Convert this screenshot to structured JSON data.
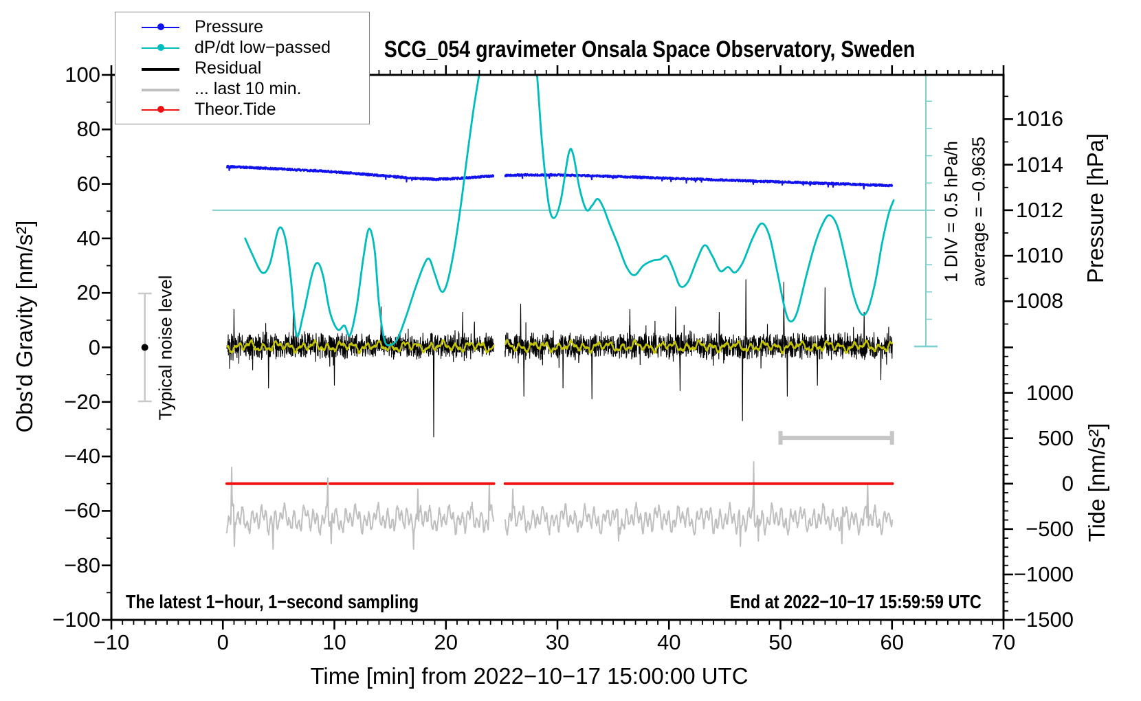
{
  "title": "SCG_054 gravimeter Onsala Space Observatory, Sweden",
  "annotations": {
    "bottom_left": "The latest 1−hour, 1−second sampling",
    "bottom_right": "End at 2022−10−17 15:59:59 UTC",
    "noise_label": "Typical noise level",
    "div_scale": "1 DIV = 0.5 hPa/h",
    "average": "average = −0.9635"
  },
  "legend": {
    "items": [
      {
        "label": "Pressure",
        "color": "#1212ee",
        "dot": true,
        "thick": 2
      },
      {
        "label": "dP/dt low−passed",
        "color": "#00bdbd",
        "dot": true,
        "thick": 2
      },
      {
        "label": "Residual",
        "color": "#000000",
        "dot": false,
        "thick": 4
      },
      {
        "label": "... last 10 min.",
        "color": "#bfbfbf",
        "dot": false,
        "thick": 4
      },
      {
        "label": "Theor.Tide",
        "color": "#ee1111",
        "dot": true,
        "thick": 2
      }
    ]
  },
  "colors": {
    "frame": "#000000",
    "pressure": "#1212ee",
    "dpdt": "#00bdbd",
    "residual": "#000000",
    "residual_smooth": "#c3c300",
    "tide": "#ee1111",
    "last10": "#bfbfbf",
    "guide_cyan": "#7ed0d0",
    "noise_bar": "#c9c9c9",
    "last10_bar": "#c6c6c6"
  },
  "axes": {
    "x_axis": {
      "title": "Time [min] from 2022−10−17 15:00:00 UTC",
      "range": [
        -10,
        70
      ],
      "minor_step": 1,
      "major_step": 10,
      "ticks": [
        {
          "v": -10,
          "label": "−10"
        },
        {
          "v": 0,
          "label": "0"
        },
        {
          "v": 10,
          "label": "10"
        },
        {
          "v": 20,
          "label": "20"
        },
        {
          "v": 30,
          "label": "30"
        },
        {
          "v": 40,
          "label": "40"
        },
        {
          "v": 50,
          "label": "50"
        },
        {
          "v": 60,
          "label": "60"
        },
        {
          "v": 70,
          "label": "70"
        }
      ]
    },
    "y_left": {
      "title": "Obs'd Gravity [nm/s²]",
      "range": [
        -100,
        100
      ],
      "minor_step": 10,
      "major_step": 20,
      "ticks": [
        {
          "v": 100,
          "label": "100"
        },
        {
          "v": 80,
          "label": "80"
        },
        {
          "v": 60,
          "label": "60"
        },
        {
          "v": 40,
          "label": "40"
        },
        {
          "v": 20,
          "label": "20"
        },
        {
          "v": 0,
          "label": "0"
        },
        {
          "v": -20,
          "label": "−20"
        },
        {
          "v": -40,
          "label": "−40"
        },
        {
          "v": -60,
          "label": "−60"
        },
        {
          "v": -80,
          "label": "−80"
        },
        {
          "v": -100,
          "label": "−100"
        }
      ]
    },
    "y_pressure": {
      "title": "Pressure [hPa]",
      "anchor_value": 1012,
      "anchor_g": 50.35,
      "g_per_hpa": 8.355,
      "minor_step": 1,
      "minor_range": [
        1007,
        1017
      ],
      "ticks": [
        {
          "v": 1016,
          "label": "1016"
        },
        {
          "v": 1014,
          "label": "1014"
        },
        {
          "v": 1012,
          "label": "1012"
        },
        {
          "v": 1010,
          "label": "1010"
        },
        {
          "v": 1008,
          "label": "1008"
        }
      ]
    },
    "y_tide": {
      "title": "Tide [nm/s²]",
      "anchor_g": -50,
      "units_per_g": 30.0,
      "minor_step": 100,
      "minor_range": [
        -1500,
        1500
      ],
      "ticks": [
        {
          "v": 1000,
          "label": "1000"
        },
        {
          "v": 500,
          "label": "500"
        },
        {
          "v": 0,
          "label": "0"
        },
        {
          "v": -500,
          "label": "−500"
        },
        {
          "v": -1000,
          "label": "−1000"
        },
        {
          "v": -1500,
          "label": "−1500"
        }
      ]
    }
  },
  "chart_data": {
    "type": "line",
    "title": "SCG_054 gravimeter Onsala Space Observatory, Sweden",
    "xlabel": "Time [min] from 2022−10−17 15:00:00 UTC",
    "ylabel_left": "Obs'd Gravity [nm/s²]",
    "xlim": [
      -10,
      70
    ],
    "ylim_left": [
      -100,
      100
    ],
    "data_gap_minutes": [
      24.3,
      25.3
    ],
    "guides": {
      "hline": {
        "g": 50.35,
        "t1": -0.95,
        "x2": 1360
      },
      "div_axis": {
        "x": 1347,
        "tick_step_g": 10.0,
        "cap_half": 17
      },
      "noise_bar": {
        "t": -7,
        "g_lo": -19.8,
        "g_hi": 19.8,
        "dot_g": 0
      },
      "last10_bar": {
        "t1": 50,
        "t2": 60,
        "g": -33.2
      }
    },
    "series": [
      {
        "name": "last-10-min-trace",
        "type": "waves",
        "color": "#bfbfbf",
        "width": 2,
        "base": -63,
        "seed": 3,
        "noise": 2.0,
        "waves": [
          [
            0.42,
            2.4,
            0.3
          ],
          [
            0.93,
            2.0,
            2.2
          ],
          [
            2.1,
            1.5,
            4.1
          ]
        ],
        "segments": [
          [
            0.3,
            24.3
          ],
          [
            25.3,
            60.05
          ]
        ],
        "spikes": [
          [
            0.8,
            -44
          ],
          [
            1.05,
            -73
          ],
          [
            4.5,
            -74
          ],
          [
            9.4,
            -48
          ],
          [
            9.7,
            -72
          ],
          [
            17.1,
            -74
          ],
          [
            17.5,
            -52
          ],
          [
            23.9,
            -50
          ],
          [
            26.0,
            -52
          ],
          [
            35.5,
            -71
          ],
          [
            46.4,
            -73
          ],
          [
            47.6,
            -42
          ],
          [
            48.0,
            -71
          ],
          [
            55.5,
            -72
          ],
          [
            57.8,
            -50
          ]
        ]
      },
      {
        "name": "theor-tide",
        "type": "flat",
        "color": "#ee1111",
        "width": 4,
        "value": -50,
        "segments": [
          [
            0.35,
            9.25
          ],
          [
            9.6,
            24.3
          ],
          [
            25.3,
            60.05
          ]
        ]
      },
      {
        "name": "residual",
        "type": "noise",
        "color": "#000000",
        "width": 1.1,
        "base": 0.5,
        "sigma": 5.5,
        "seed": 11,
        "segments": [
          [
            0.35,
            24.3
          ],
          [
            25.3,
            60.05
          ]
        ],
        "spikes": [
          [
            1.0,
            14
          ],
          [
            4.1,
            -15
          ],
          [
            6.3,
            13
          ],
          [
            10.0,
            -14
          ],
          [
            14.2,
            15
          ],
          [
            18.9,
            -33
          ],
          [
            21.5,
            13
          ],
          [
            26.7,
            16
          ],
          [
            27.0,
            -18
          ],
          [
            30.5,
            -15
          ],
          [
            33.1,
            -19
          ],
          [
            36.5,
            14
          ],
          [
            40.6,
            15
          ],
          [
            41.0,
            -16
          ],
          [
            44.5,
            13
          ],
          [
            46.6,
            -27
          ],
          [
            46.9,
            25
          ],
          [
            50.3,
            24
          ],
          [
            50.6,
            -18
          ],
          [
            53.3,
            -14
          ],
          [
            54.0,
            22
          ],
          [
            57.5,
            13
          ],
          [
            59.0,
            -12
          ]
        ]
      },
      {
        "name": "residual-low-passed",
        "type": "waves",
        "color": "#c3c300",
        "width": 2.4,
        "base": 0.3,
        "seed": 5,
        "noise": 0.8,
        "waves": [
          [
            1.15,
            1.0,
            0.5
          ],
          [
            0.52,
            0.6,
            1.7
          ],
          [
            2.9,
            0.7,
            3.0
          ]
        ],
        "segments": [
          [
            0.35,
            24.3
          ],
          [
            25.3,
            60.05
          ]
        ],
        "spikes": []
      },
      {
        "name": "pressure",
        "type": "noisy-line",
        "color": "#1212ee",
        "width": 2.2,
        "noise": 0.42,
        "seed": 7,
        "segments": [
          [
            0.35,
            24.3
          ],
          [
            25.3,
            60.05
          ]
        ],
        "points": [
          [
            0,
            66.4
          ],
          [
            3,
            65.9
          ],
          [
            6,
            65.3
          ],
          [
            9,
            64.7
          ],
          [
            12,
            63.8
          ],
          [
            15,
            62.8
          ],
          [
            17,
            62.1
          ],
          [
            19,
            61.7
          ],
          [
            21,
            62.0
          ],
          [
            23,
            62.6
          ],
          [
            24.3,
            62.9
          ],
          [
            25.3,
            63.1
          ],
          [
            27,
            63.3
          ],
          [
            30,
            63.3
          ],
          [
            33,
            63.0
          ],
          [
            36,
            62.6
          ],
          [
            39,
            62.2
          ],
          [
            42,
            61.8
          ],
          [
            45,
            61.4
          ],
          [
            48,
            61.0
          ],
          [
            51,
            60.6
          ],
          [
            54,
            60.2
          ],
          [
            57,
            59.8
          ],
          [
            60,
            59.4
          ]
        ]
      },
      {
        "name": "dpdt-low-passed",
        "type": "smooth",
        "color": "#00bdbd",
        "width": 2.8,
        "pieces": [
          [
            [
              2.0,
              40
            ],
            [
              2.6,
              34.5
            ],
            [
              3.5,
              27.5
            ],
            [
              4.2,
              30.5
            ],
            [
              5.0,
              43.5
            ],
            [
              5.6,
              40
            ],
            [
              6.1,
              25
            ],
            [
              6.6,
              4.5
            ],
            [
              7.2,
              12
            ],
            [
              8.0,
              27
            ],
            [
              8.5,
              31
            ],
            [
              9.0,
              26
            ],
            [
              9.6,
              13
            ],
            [
              10.3,
              6.5
            ],
            [
              10.9,
              8
            ],
            [
              11.4,
              4.5
            ],
            [
              12.0,
              15
            ],
            [
              12.6,
              33
            ],
            [
              13.1,
              43.5
            ],
            [
              13.6,
              36
            ],
            [
              14.0,
              16
            ],
            [
              14.5,
              2.5
            ],
            [
              15.1,
              1
            ],
            [
              15.7,
              3.5
            ],
            [
              16.4,
              11
            ],
            [
              17.2,
              21
            ],
            [
              18.0,
              30
            ],
            [
              18.5,
              32.5
            ],
            [
              19.0,
              27
            ],
            [
              19.6,
              20.5
            ],
            [
              20.1,
              23.5
            ],
            [
              20.7,
              35
            ],
            [
              21.3,
              51
            ],
            [
              21.9,
              70
            ],
            [
              22.5,
              88
            ],
            [
              23.1,
              103
            ],
            [
              23.6,
              115
            ]
          ],
          [
            [
              27.5,
              116
            ],
            [
              28.1,
              103
            ],
            [
              28.6,
              76
            ],
            [
              29.2,
              53
            ],
            [
              29.7,
              47.5
            ],
            [
              30.3,
              54
            ],
            [
              31.0,
              71
            ],
            [
              31.4,
              71
            ],
            [
              32.0,
              58
            ],
            [
              32.6,
              50.5
            ],
            [
              33.1,
              52
            ],
            [
              33.6,
              54.5
            ],
            [
              34.1,
              51.5
            ],
            [
              34.7,
              45
            ],
            [
              35.4,
              38
            ],
            [
              36.2,
              29.5
            ],
            [
              36.9,
              26.5
            ],
            [
              37.7,
              30
            ],
            [
              38.5,
              31.8
            ],
            [
              39.2,
              32.3
            ],
            [
              39.8,
              33.5
            ],
            [
              40.4,
              28.5
            ],
            [
              41.0,
              22.5
            ],
            [
              41.7,
              24
            ],
            [
              42.5,
              32
            ],
            [
              43.2,
              37.5
            ],
            [
              43.9,
              33.5
            ],
            [
              44.6,
              28
            ],
            [
              45.3,
              29.5
            ],
            [
              45.9,
              27.5
            ],
            [
              46.6,
              31
            ],
            [
              47.5,
              40
            ],
            [
              48.3,
              45.5
            ],
            [
              49.0,
              41
            ],
            [
              49.7,
              28
            ],
            [
              50.4,
              14
            ],
            [
              50.9,
              9.5
            ],
            [
              51.5,
              13
            ],
            [
              52.3,
              26
            ],
            [
              53.1,
              38
            ],
            [
              53.8,
              45.5
            ],
            [
              54.4,
              48.5
            ],
            [
              55.1,
              44.5
            ],
            [
              55.8,
              33
            ],
            [
              56.5,
              20
            ],
            [
              57.2,
              12.5
            ],
            [
              57.8,
              13.5
            ],
            [
              58.5,
              24
            ],
            [
              59.1,
              38
            ],
            [
              59.7,
              49
            ],
            [
              60.15,
              54
            ]
          ]
        ]
      }
    ]
  }
}
